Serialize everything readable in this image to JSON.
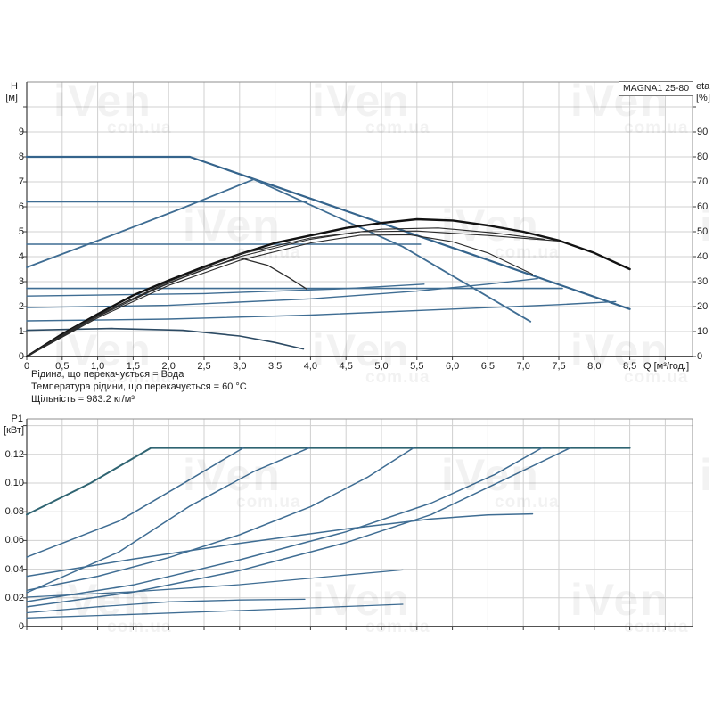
{
  "header": {
    "title": "MAGNA1 25-80"
  },
  "watermark": {
    "text": "iVen",
    "subtext": "com.ua"
  },
  "info_lines": [
    "Рідина, що перекачується = Вода",
    "Температура рідини, що перекачується = 60 °C",
    "Щільність = 983.2 кг/м³"
  ],
  "chart_data": [
    {
      "type": "line",
      "name": "hq-eta-chart",
      "title": "MAGNA1 25-80",
      "y_left": {
        "label": "H",
        "unit": "[м]",
        "tick_step": 1,
        "tick_labels": [
          "0",
          "1",
          "2",
          "3",
          "4",
          "5",
          "6",
          "7",
          "8",
          "9"
        ],
        "range": [
          0,
          11
        ]
      },
      "y_right": {
        "label": "eta",
        "unit": "[%]",
        "tick_step": 10,
        "tick_labels": [
          "0",
          "10",
          "20",
          "30",
          "40",
          "50",
          "60",
          "70",
          "80",
          "90"
        ],
        "range": [
          0,
          110
        ]
      },
      "x": {
        "label": "Q [м³/год.]",
        "tick_step": 0.5,
        "range": [
          0,
          9.38
        ],
        "grid": true,
        "tick_labels": [
          "0",
          "0,5",
          "1,0",
          "1,5",
          "2,0",
          "2,5",
          "3,0",
          "3,5",
          "4,0",
          "4,5",
          "5,0",
          "5,5",
          "6,0",
          "6,5",
          "7,0",
          "7,5",
          "8,0",
          "8,5"
        ]
      },
      "series": [
        {
          "name": "max-speed-curve",
          "axis": "left",
          "color": "#35648c",
          "width": 2.2,
          "points": [
            [
              0,
              8
            ],
            [
              2.3,
              8
            ],
            [
              8.5,
              1.9
            ]
          ]
        },
        {
          "name": "cp3-curve",
          "axis": "left",
          "color": "#3f6d93",
          "width": 1.6,
          "points": [
            [
              0,
              6.2
            ],
            [
              3.95,
              6.2
            ]
          ]
        },
        {
          "name": "cp2-curve",
          "axis": "left",
          "color": "#3f6d93",
          "width": 1.6,
          "points": [
            [
              0,
              4.5
            ],
            [
              5.55,
              4.5
            ]
          ]
        },
        {
          "name": "cp1-curve",
          "axis": "left",
          "color": "#3f6d93",
          "width": 1.6,
          "points": [
            [
              0,
              2.73
            ],
            [
              7.55,
              2.73
            ]
          ]
        },
        {
          "name": "pp3-rise-curve",
          "axis": "left",
          "color": "#3f6d93",
          "width": 1.8,
          "points": [
            [
              0,
              3.57
            ],
            [
              1.1,
              4.75
            ],
            [
              2.2,
              5.95
            ],
            [
              3.2,
              7.1
            ]
          ]
        },
        {
          "name": "pp3-fall-curve",
          "axis": "left",
          "color": "#3f6d93",
          "width": 1.8,
          "points": [
            [
              3.2,
              7.1
            ],
            [
              5.3,
              4.4
            ],
            [
              7.1,
              1.4
            ]
          ]
        },
        {
          "name": "pp2-upper-curve",
          "axis": "left",
          "color": "#3f6d93",
          "width": 1.4,
          "points": [
            [
              0,
              2.42
            ],
            [
              2.5,
              2.52
            ],
            [
              4.5,
              2.72
            ],
            [
              5.6,
              2.9
            ]
          ]
        },
        {
          "name": "pp2-curve",
          "axis": "left",
          "color": "#3f6d93",
          "width": 1.4,
          "points": [
            [
              0,
              1.96
            ],
            [
              2,
              2.05
            ],
            [
              4,
              2.31
            ],
            [
              5.5,
              2.62
            ],
            [
              6.5,
              2.9
            ],
            [
              7.2,
              3.12
            ]
          ]
        },
        {
          "name": "pp1-curve",
          "axis": "left",
          "color": "#3f6d93",
          "width": 1.4,
          "points": [
            [
              0,
              1.43
            ],
            [
              2,
              1.5
            ],
            [
              4,
              1.66
            ],
            [
              6,
              1.9
            ],
            [
              7.5,
              2.08
            ],
            [
              8.3,
              2.2
            ]
          ]
        },
        {
          "name": "min-speed-curve",
          "axis": "left",
          "color": "#2c4a63",
          "width": 1.6,
          "points": [
            [
              0,
              1.05
            ],
            [
              1.2,
              1.12
            ],
            [
              2.2,
              1.05
            ],
            [
              3,
              0.82
            ],
            [
              3.5,
              0.56
            ],
            [
              3.9,
              0.3
            ]
          ]
        },
        {
          "name": "eta-max-curve",
          "axis": "right",
          "color": "#121212",
          "width": 2.4,
          "points": [
            [
              0,
              0
            ],
            [
              0.5,
              9
            ],
            [
              1,
              17
            ],
            [
              1.5,
              24.5
            ],
            [
              2,
              30.5
            ],
            [
              2.5,
              36
            ],
            [
              3,
              41
            ],
            [
              3.5,
              45.5
            ],
            [
              4,
              48.5
            ],
            [
              4.5,
              51.5
            ],
            [
              5,
              53.5
            ],
            [
              5.5,
              55
            ],
            [
              6,
              54.5
            ],
            [
              6.5,
              52.5
            ],
            [
              7,
              50
            ],
            [
              7.5,
              46.5
            ],
            [
              8,
              41.5
            ],
            [
              8.5,
              35
            ]
          ]
        },
        {
          "name": "eta-curve-2",
          "axis": "right",
          "color": "#2b2b2b",
          "width": 1.1,
          "points": [
            [
              0,
              0
            ],
            [
              1,
              16
            ],
            [
              2,
              29.5
            ],
            [
              3,
              40
            ],
            [
              4,
              47
            ],
            [
              4.7,
              50
            ],
            [
              5.5,
              50.3
            ],
            [
              6.5,
              48.5
            ],
            [
              7.5,
              46.3
            ]
          ]
        },
        {
          "name": "eta-curve-3",
          "axis": "right",
          "color": "#2b2b2b",
          "width": 1.1,
          "points": [
            [
              0,
              0
            ],
            [
              1,
              15.5
            ],
            [
              2,
              28.5
            ],
            [
              3,
              38.5
            ],
            [
              4,
              45.5
            ],
            [
              4.7,
              48.6
            ],
            [
              5.4,
              48.8
            ],
            [
              6,
              46
            ],
            [
              6.5,
              41.5
            ],
            [
              7.13,
              33
            ]
          ]
        },
        {
          "name": "eta-curve-4",
          "axis": "right",
          "color": "#2b2b2b",
          "width": 1.1,
          "points": [
            [
              0,
              0
            ],
            [
              1,
              16.5
            ],
            [
              2,
              30
            ],
            [
              3,
              41
            ],
            [
              4,
              47.5
            ],
            [
              5,
              51
            ],
            [
              5.8,
              51.5
            ],
            [
              6.6,
              49.5
            ],
            [
              7.3,
              47
            ]
          ]
        },
        {
          "name": "eta-min-curve",
          "axis": "right",
          "color": "#2b2b2b",
          "width": 1.3,
          "points": [
            [
              0,
              0
            ],
            [
              0.7,
              12
            ],
            [
              1.4,
              22
            ],
            [
              2.1,
              30.5
            ],
            [
              2.6,
              36
            ],
            [
              3,
              39.5
            ],
            [
              3.4,
              36.5
            ],
            [
              3.7,
              31.5
            ],
            [
              3.95,
              27
            ]
          ]
        }
      ]
    },
    {
      "type": "line",
      "name": "power-chart",
      "y_left": {
        "label": "P1",
        "unit": "[кВт]",
        "tick_step": 0.02,
        "tick_labels": [
          "0",
          "0,02",
          "0,04",
          "0,06",
          "0,08",
          "0,10",
          "0,12"
        ],
        "range": [
          0,
          0.1447
        ]
      },
      "x": {
        "label": "",
        "tick_step": 0.5,
        "range": [
          0,
          9.38
        ],
        "grid": true,
        "tick_labels": []
      },
      "series": [
        {
          "name": "p1-max-curve",
          "axis": "left",
          "color": "#2f6472",
          "width": 2.0,
          "points": [
            [
              0,
              0.078
            ],
            [
              0.9,
              0.1
            ],
            [
              1.75,
              0.1245
            ],
            [
              8.5,
              0.1245
            ]
          ]
        },
        {
          "name": "p1-curve-2",
          "axis": "left",
          "color": "#3f6d93",
          "width": 1.5,
          "points": [
            [
              0,
              0.0484
            ],
            [
              1.3,
              0.0735
            ],
            [
              2.2,
              0.0995
            ],
            [
              3.05,
              0.1245
            ]
          ]
        },
        {
          "name": "p1-curve-3",
          "axis": "left",
          "color": "#3f6d93",
          "width": 1.5,
          "points": [
            [
              0,
              0.0236
            ],
            [
              1.3,
              0.052
            ],
            [
              2.3,
              0.084
            ],
            [
              3.2,
              0.108
            ],
            [
              3.98,
              0.1245
            ]
          ]
        },
        {
          "name": "p1-curve-4",
          "axis": "left",
          "color": "#3f6d93",
          "width": 1.5,
          "points": [
            [
              0,
              0.0253
            ],
            [
              1,
              0.035
            ],
            [
              2,
              0.048
            ],
            [
              3,
              0.064
            ],
            [
              4,
              0.0835
            ],
            [
              4.8,
              0.104
            ],
            [
              5.45,
              0.1245
            ]
          ]
        },
        {
          "name": "p1-curve-5",
          "axis": "left",
          "color": "#3f6d93",
          "width": 1.5,
          "points": [
            [
              0,
              0.0174
            ],
            [
              1.5,
              0.029
            ],
            [
              3,
              0.0465
            ],
            [
              4.5,
              0.066
            ],
            [
              5.7,
              0.086
            ],
            [
              6.6,
              0.106
            ],
            [
              7.26,
              0.1245
            ]
          ]
        },
        {
          "name": "p1-curve-6",
          "axis": "left",
          "color": "#3f6d93",
          "width": 1.5,
          "points": [
            [
              0,
              0.0137
            ],
            [
              1.5,
              0.024
            ],
            [
              3,
              0.039
            ],
            [
              4.5,
              0.0585
            ],
            [
              5.7,
              0.078
            ],
            [
              6.8,
              0.104
            ],
            [
              7.66,
              0.1245
            ]
          ]
        },
        {
          "name": "p1-curve-7",
          "axis": "left",
          "color": "#3f6d93",
          "width": 1.5,
          "points": [
            [
              0,
              0.035
            ],
            [
              1.5,
              0.047
            ],
            [
              3,
              0.058
            ],
            [
              4.5,
              0.068
            ],
            [
              5.7,
              0.075
            ],
            [
              6.5,
              0.0778
            ],
            [
              7.13,
              0.0785
            ]
          ]
        },
        {
          "name": "p1-curve-8",
          "axis": "left",
          "color": "#3f6d93",
          "width": 1.3,
          "points": [
            [
              0,
              0.0205
            ],
            [
              1.5,
              0.0243
            ],
            [
              3,
              0.0292
            ],
            [
              4.3,
              0.035
            ],
            [
              5.3,
              0.0395
            ]
          ]
        },
        {
          "name": "p1-curve-9",
          "axis": "left",
          "color": "#3f6d93",
          "width": 1.3,
          "points": [
            [
              0,
              0.0096
            ],
            [
              1,
              0.0138
            ],
            [
              2,
              0.0172
            ],
            [
              3,
              0.0185
            ],
            [
              3.92,
              0.019
            ]
          ]
        },
        {
          "name": "p1-curve-10",
          "axis": "left",
          "color": "#3f6d93",
          "width": 1.3,
          "points": [
            [
              0,
              0.006
            ],
            [
              1.5,
              0.0085
            ],
            [
              3,
              0.0112
            ],
            [
              4.5,
              0.014
            ],
            [
              5.3,
              0.0155
            ]
          ]
        }
      ]
    }
  ]
}
